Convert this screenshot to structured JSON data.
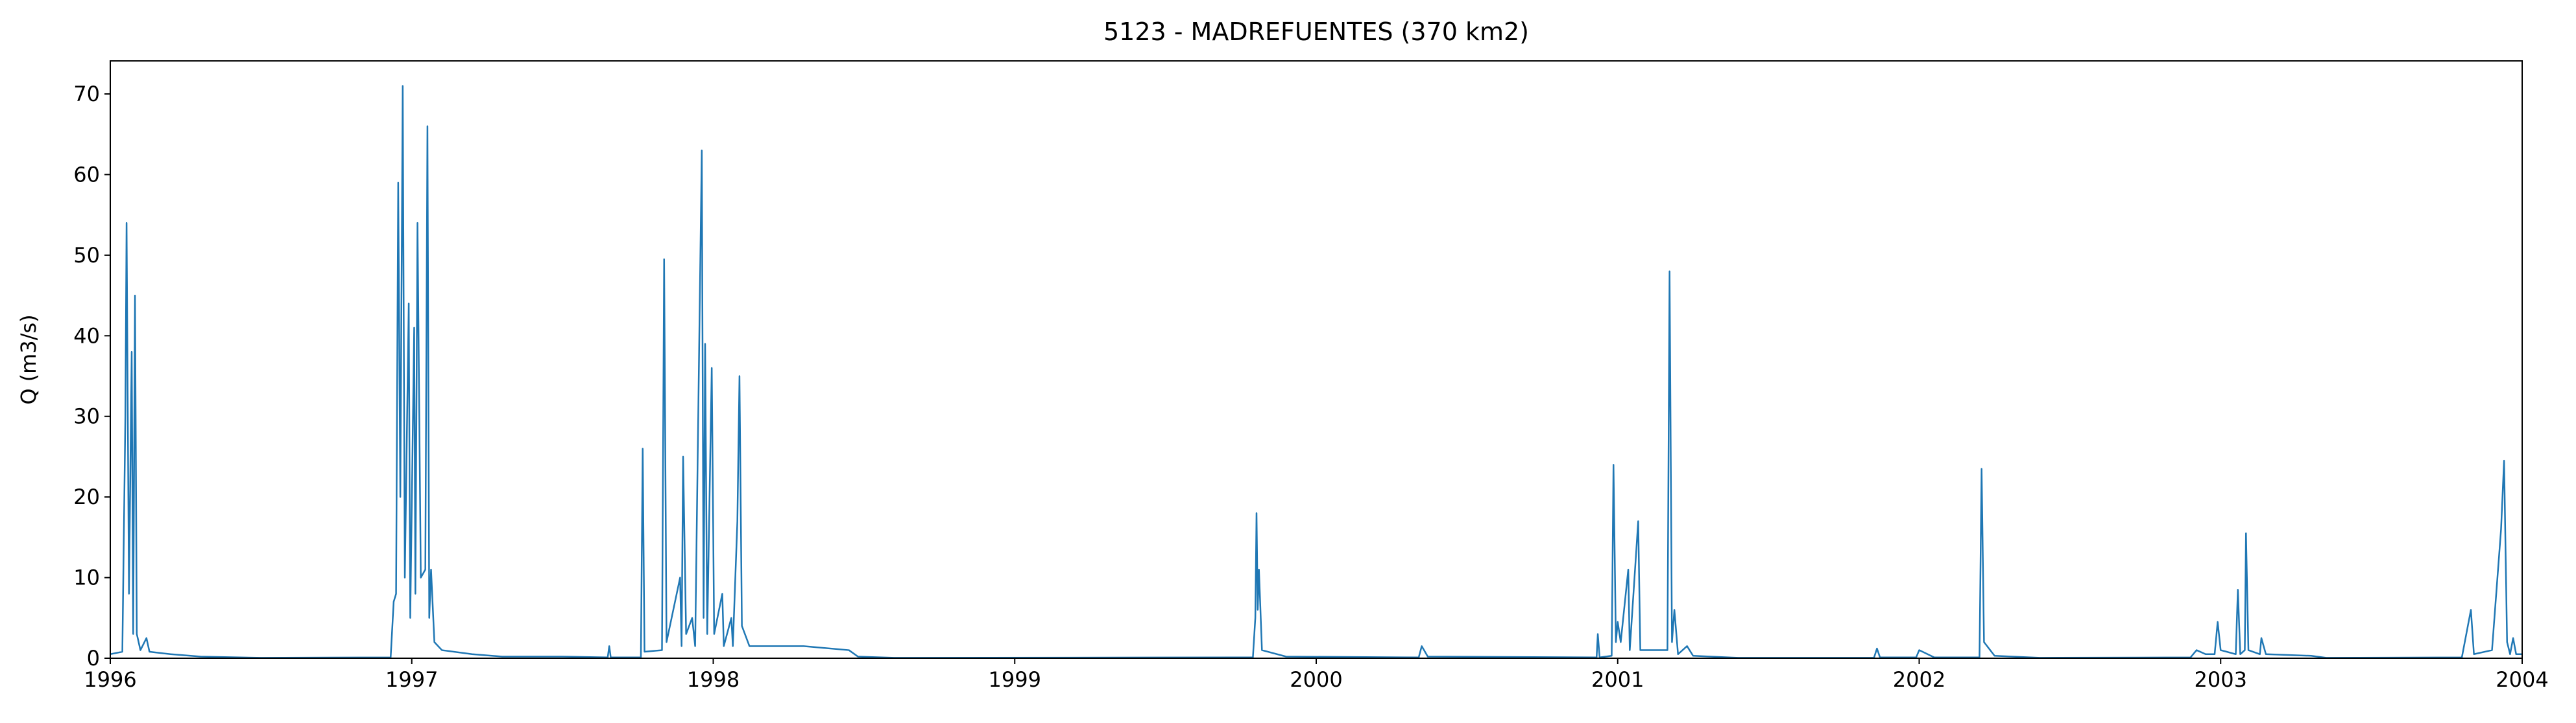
{
  "chart_data": {
    "type": "line",
    "title": "5123 - MADREFUENTES (370 km2)",
    "ylabel": "Q (m3/s)",
    "color": "#1f77b4",
    "x": [
      1996.0,
      1996.04,
      1996.05,
      1996.054,
      1996.062,
      1996.071,
      1996.076,
      1996.082,
      1996.088,
      1996.1,
      1996.12,
      1996.13,
      1996.2,
      1996.3,
      1996.5,
      1996.93,
      1996.94,
      1996.948,
      1996.955,
      1996.962,
      1996.97,
      1996.977,
      1996.99,
      1996.995,
      1997.008,
      1997.012,
      1997.019,
      1997.03,
      1997.045,
      1997.052,
      1997.058,
      1997.064,
      1997.075,
      1997.1,
      1997.2,
      1997.3,
      1997.5,
      1997.65,
      1997.655,
      1997.66,
      1997.76,
      1997.766,
      1997.772,
      1997.83,
      1997.837,
      1997.845,
      1997.89,
      1997.895,
      1997.9,
      1997.91,
      1997.93,
      1997.94,
      1997.962,
      1997.968,
      1997.973,
      1997.98,
      1997.995,
      1998.003,
      1998.03,
      1998.035,
      1998.06,
      1998.065,
      1998.08,
      1998.087,
      1998.095,
      1998.12,
      1998.3,
      1998.45,
      1998.48,
      1998.6,
      1999.79,
      1999.798,
      1999.802,
      1999.806,
      1999.81,
      1999.82,
      1999.9,
      2000.34,
      2000.35,
      2000.37,
      2000.93,
      2000.934,
      2000.94,
      2000.98,
      2000.986,
      2000.994,
      2001.0,
      2001.01,
      2001.035,
      2001.04,
      2001.068,
      2001.075,
      2001.165,
      2001.172,
      2001.18,
      2001.188,
      2001.2,
      2001.23,
      2001.25,
      2001.4,
      2001.85,
      2001.86,
      2001.87,
      2001.99,
      2002.0,
      2002.05,
      2002.2,
      2002.207,
      2002.215,
      2002.25,
      2002.4,
      2002.9,
      2002.92,
      2002.95,
      2002.98,
      2002.99,
      2003.0,
      2003.05,
      2003.057,
      2003.065,
      2003.08,
      2003.084,
      2003.092,
      2003.13,
      2003.135,
      2003.15,
      2003.3,
      2003.35,
      2003.8,
      2003.83,
      2003.84,
      2003.9,
      2003.93,
      2003.94,
      2003.95,
      2003.96,
      2003.97,
      2003.98,
      2004.0
    ],
    "values": [
      0.5,
      0.8,
      30,
      54,
      8,
      38,
      3,
      45,
      3,
      1,
      2.5,
      0.8,
      0.5,
      0.2,
      0.05,
      0.1,
      7,
      8,
      59,
      20,
      71,
      10,
      44,
      5,
      41,
      8,
      54,
      10,
      11,
      66,
      5,
      11,
      2,
      1,
      0.5,
      0.2,
      0.2,
      0.1,
      1.5,
      0.1,
      0.1,
      26,
      0.8,
      1,
      49.5,
      2,
      10,
      1.5,
      25,
      3,
      5,
      1.5,
      63,
      5,
      39,
      3,
      36,
      3,
      8,
      1.5,
      5,
      1.5,
      17,
      35,
      4,
      1.5,
      1.5,
      1,
      0.2,
      0.05,
      0.1,
      5,
      18,
      6,
      11,
      1,
      0.2,
      0.1,
      1.5,
      0.2,
      0.1,
      3,
      0.1,
      0.3,
      24,
      2,
      4.5,
      2,
      11,
      1,
      17,
      1,
      1,
      48,
      2,
      6,
      0.5,
      1.5,
      0.3,
      0.05,
      0.05,
      1.2,
      0.1,
      0.1,
      1,
      0.1,
      0.1,
      23.5,
      2,
      0.3,
      0.05,
      0.1,
      1,
      0.5,
      0.5,
      4.5,
      1,
      0.5,
      8.5,
      0.5,
      1,
      15.5,
      1,
      0.5,
      2.5,
      0.5,
      0.3,
      0.05,
      0.1,
      6,
      0.5,
      1,
      16,
      24.5,
      2,
      0.5,
      2.5,
      0.5,
      0.5
    ],
    "xlim": [
      1996,
      2004
    ],
    "xticks": [
      1996,
      1997,
      1998,
      1999,
      2000,
      2001,
      2002,
      2003,
      2004
    ],
    "ylim": [
      0,
      74.1
    ],
    "yticks": [
      0,
      10,
      20,
      30,
      40,
      50,
      60,
      70
    ]
  }
}
